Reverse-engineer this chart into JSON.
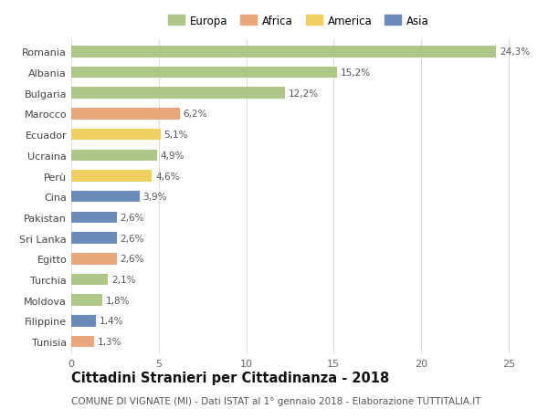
{
  "categories": [
    "Romania",
    "Albania",
    "Bulgaria",
    "Marocco",
    "Ecuador",
    "Ucraina",
    "Perù",
    "Cina",
    "Pakistan",
    "Sri Lanka",
    "Egitto",
    "Turchia",
    "Moldova",
    "Filippine",
    "Tunisia"
  ],
  "values": [
    24.3,
    15.2,
    12.2,
    6.2,
    5.1,
    4.9,
    4.6,
    3.9,
    2.6,
    2.6,
    2.6,
    2.1,
    1.8,
    1.4,
    1.3
  ],
  "labels": [
    "24,3%",
    "15,2%",
    "12,2%",
    "6,2%",
    "5,1%",
    "4,9%",
    "4,6%",
    "3,9%",
    "2,6%",
    "2,6%",
    "2,6%",
    "2,1%",
    "1,8%",
    "1,4%",
    "1,3%"
  ],
  "continent": [
    "Europa",
    "Europa",
    "Europa",
    "Africa",
    "America",
    "Europa",
    "America",
    "Asia",
    "Asia",
    "Asia",
    "Africa",
    "Europa",
    "Europa",
    "Asia",
    "Africa"
  ],
  "colors": {
    "Europa": "#aec688",
    "Africa": "#e8a87c",
    "America": "#f0d060",
    "Asia": "#6b8cba"
  },
  "legend_order": [
    "Europa",
    "Africa",
    "America",
    "Asia"
  ],
  "title": "Cittadini Stranieri per Cittadinanza - 2018",
  "subtitle": "COMUNE DI VIGNATE (MI) - Dati ISTAT al 1° gennaio 2018 - Elaborazione TUTTITALIA.IT",
  "xlim": [
    0,
    26
  ],
  "xticks": [
    0,
    5,
    10,
    15,
    20,
    25
  ],
  "background_color": "#ffffff",
  "grid_color": "#dddddd",
  "bar_height": 0.55,
  "title_fontsize": 10.5,
  "subtitle_fontsize": 7.5,
  "label_fontsize": 7.5,
  "tick_fontsize": 8,
  "legend_fontsize": 8.5
}
